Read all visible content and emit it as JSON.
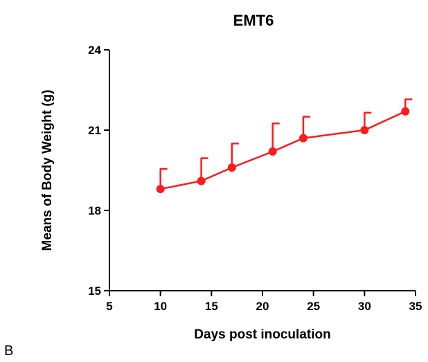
{
  "chart_data": {
    "type": "line",
    "title": "EMT6",
    "xlabel": "Days post inoculation",
    "ylabel": "Means of Body Weight (g)",
    "xlim": [
      5,
      35
    ],
    "ylim": [
      15,
      24
    ],
    "xticks": [
      5,
      10,
      15,
      20,
      25,
      30,
      35
    ],
    "yticks": [
      15,
      18,
      21,
      24
    ],
    "grid": false,
    "legend": "none",
    "series": [
      {
        "color": "#ff1a1a",
        "x": [
          10,
          14,
          17,
          21,
          24,
          30,
          34
        ],
        "y": [
          18.8,
          19.1,
          19.6,
          20.2,
          20.7,
          21.0,
          21.7
        ],
        "error_upper": [
          0.75,
          0.85,
          0.9,
          1.05,
          0.8,
          0.65,
          0.45
        ]
      }
    ]
  },
  "panel_label": "B"
}
